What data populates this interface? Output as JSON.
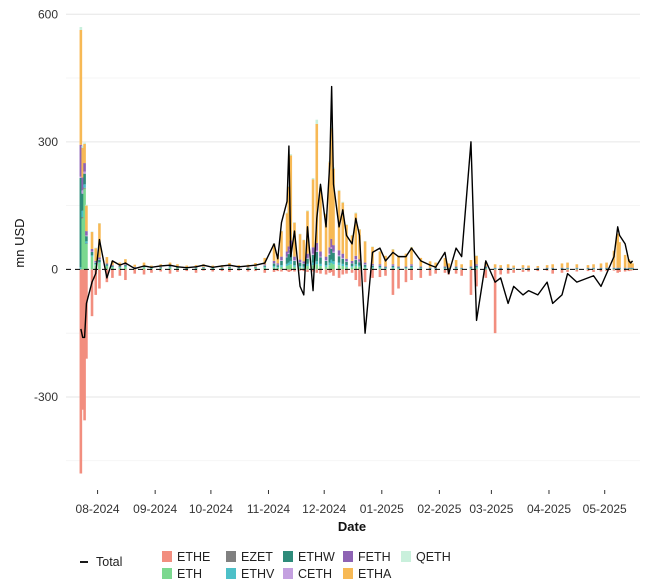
{
  "chart_data": {
    "type": "bar",
    "stacked": true,
    "overlay_line": "Total",
    "xlabel": "Date",
    "ylabel": "mn USD",
    "ylim": [
      -500,
      610
    ],
    "y_ticks": [
      600,
      300,
      0,
      -300
    ],
    "y_tick_labels": [
      "600",
      "300",
      "0",
      "-300"
    ],
    "x_range": [
      "2024-07-15",
      "2025-05-20"
    ],
    "x_ticks": [
      "2024-08-01",
      "2024-09-01",
      "2024-10-01",
      "2024-11-01",
      "2024-12-01",
      "2025-01-01",
      "2025-02-01",
      "2025-03-01",
      "2025-04-01",
      "2025-05-01"
    ],
    "x_tick_labels": [
      "08-2024",
      "09-2024",
      "10-2024",
      "11-2024",
      "12-2024",
      "01-2025",
      "02-2025",
      "03-2025",
      "04-2025",
      "05-2025"
    ],
    "grid": "horizontal",
    "zero_line": "dashed",
    "legend_position": "bottom",
    "legend": {
      "line_label": "Total",
      "items": [
        {
          "name": "ETHE",
          "color": "#F28E7F"
        },
        {
          "name": "ETH",
          "color": "#7BD88F"
        },
        {
          "name": "EZET",
          "color": "#808080"
        },
        {
          "name": "ETHV",
          "color": "#4DC0C8"
        },
        {
          "name": "ETHW",
          "color": "#2E8B7A"
        },
        {
          "name": "CETH",
          "color": "#C4A0E0"
        },
        {
          "name": "FETH",
          "color": "#8E63B4"
        },
        {
          "name": "ETHA",
          "color": "#F7B955"
        },
        {
          "name": "QETH",
          "color": "#C9F0DC"
        }
      ]
    },
    "series": [
      {
        "name": "ETHE",
        "values": [
          -480,
          -330,
          -355,
          -210,
          -110,
          -60,
          -45,
          -30,
          -20,
          -15,
          -25,
          -10,
          -12,
          -8,
          -5,
          -10,
          -6,
          -4,
          -8,
          -3,
          -5,
          -4,
          -6,
          -3,
          -5,
          -4,
          -8,
          -6,
          -4,
          -5,
          -3,
          -6,
          -4,
          -5,
          -3,
          -4,
          -6,
          -5,
          -8,
          -10,
          -12,
          -8,
          -6,
          -15,
          -20,
          -12,
          -10,
          -8,
          -25,
          -40,
          -30,
          -20,
          -18,
          -15,
          -60,
          -45,
          -30,
          -25,
          -20,
          -15,
          -10,
          -8,
          -12,
          -10,
          -15,
          -60,
          -40,
          -20,
          -150,
          -12,
          -10,
          -8,
          -6,
          -5,
          -4,
          -3,
          -10,
          -8,
          -6,
          -5,
          -4,
          -6,
          -5,
          -4,
          -3,
          -8,
          -6,
          -5,
          -4,
          -3,
          -2
        ]
      },
      {
        "name": "ETH",
        "values": [
          0,
          120,
          190,
          60,
          30,
          10,
          15,
          8,
          5,
          4,
          6,
          3,
          4,
          2,
          3,
          4,
          3,
          2,
          2,
          3,
          2,
          2,
          3,
          2,
          2,
          3,
          4,
          5,
          4,
          6,
          8,
          10,
          12,
          6,
          5,
          4,
          8,
          10,
          12,
          8,
          6,
          10,
          15,
          12,
          10,
          8,
          6,
          5,
          8,
          6,
          4,
          3,
          3,
          2,
          3,
          2,
          2,
          3,
          2,
          1,
          1,
          2,
          1,
          2,
          1,
          2,
          3,
          2,
          1,
          1,
          1,
          1,
          1,
          1,
          1,
          1,
          1,
          1,
          1,
          1,
          1,
          1,
          1,
          1,
          1,
          1,
          1,
          1,
          1,
          1,
          1
        ]
      },
      {
        "name": "EZET",
        "values": [
          0,
          3,
          2,
          1,
          0,
          0,
          0,
          0,
          0,
          0,
          0,
          0,
          0,
          0,
          0,
          0,
          0,
          0,
          0,
          0,
          0,
          0,
          0,
          0,
          0,
          0,
          0,
          0,
          0,
          0,
          0,
          0,
          0,
          0,
          0,
          0,
          0,
          0,
          0,
          0,
          0,
          0,
          0,
          0,
          0,
          0,
          0,
          0,
          0,
          0,
          0,
          0,
          0,
          0,
          0,
          0,
          0,
          0,
          0,
          0,
          0,
          0,
          0,
          0,
          0,
          0,
          0,
          0,
          0,
          0,
          0,
          0,
          0,
          0,
          0,
          0,
          0,
          0,
          0,
          0,
          0,
          0,
          0,
          0,
          0,
          0,
          0,
          0,
          0,
          0,
          0
        ]
      },
      {
        "name": "ETHV",
        "values": [
          5,
          15,
          8,
          5,
          3,
          2,
          2,
          1,
          1,
          1,
          1,
          1,
          1,
          1,
          1,
          1,
          1,
          1,
          1,
          1,
          1,
          1,
          1,
          1,
          1,
          1,
          2,
          3,
          2,
          4,
          5,
          6,
          8,
          4,
          3,
          3,
          5,
          6,
          7,
          5,
          4,
          6,
          8,
          7,
          6,
          5,
          4,
          3,
          4,
          3,
          2,
          2,
          2,
          1,
          2,
          1,
          1,
          2,
          1,
          1,
          1,
          1,
          1,
          1,
          1,
          1,
          2,
          1,
          1,
          1,
          1,
          1,
          1,
          1,
          1,
          1,
          1,
          1,
          1,
          1,
          1,
          1,
          1,
          1,
          1,
          1,
          1,
          1,
          1,
          1,
          1
        ]
      },
      {
        "name": "ETHW",
        "values": [
          210,
          40,
          25,
          12,
          8,
          4,
          6,
          3,
          2,
          2,
          3,
          1,
          2,
          1,
          1,
          2,
          1,
          1,
          1,
          1,
          1,
          1,
          2,
          1,
          1,
          2,
          3,
          6,
          4,
          10,
          15,
          20,
          25,
          10,
          8,
          6,
          12,
          18,
          22,
          15,
          10,
          18,
          25,
          20,
          15,
          12,
          8,
          6,
          10,
          8,
          5,
          4,
          3,
          2,
          3,
          2,
          2,
          3,
          2,
          1,
          1,
          2,
          1,
          2,
          1,
          2,
          3,
          2,
          1,
          1,
          1,
          1,
          1,
          1,
          1,
          1,
          1,
          1,
          1,
          1,
          1,
          1,
          1,
          1,
          1,
          1,
          1,
          1,
          1,
          1,
          1
        ]
      },
      {
        "name": "CETH",
        "values": [
          3,
          8,
          5,
          2,
          1,
          1,
          1,
          0,
          0,
          0,
          0,
          0,
          0,
          0,
          0,
          0,
          0,
          0,
          0,
          0,
          0,
          0,
          0,
          0,
          0,
          0,
          1,
          1,
          1,
          2,
          2,
          3,
          3,
          2,
          1,
          1,
          2,
          3,
          3,
          2,
          2,
          3,
          4,
          3,
          2,
          2,
          1,
          1,
          2,
          1,
          1,
          1,
          1,
          0,
          1,
          0,
          0,
          1,
          0,
          0,
          0,
          0,
          0,
          0,
          0,
          0,
          1,
          0,
          0,
          0,
          0,
          0,
          0,
          0,
          0,
          0,
          0,
          0,
          0,
          0,
          0,
          0,
          0,
          0,
          0,
          0,
          0,
          0,
          0,
          0,
          0
        ]
      },
      {
        "name": "FETH",
        "values": [
          75,
          30,
          20,
          10,
          6,
          3,
          4,
          2,
          2,
          1,
          2,
          1,
          1,
          1,
          1,
          1,
          1,
          1,
          1,
          1,
          1,
          1,
          1,
          1,
          1,
          1,
          2,
          5,
          3,
          8,
          12,
          15,
          20,
          8,
          6,
          5,
          10,
          15,
          18,
          12,
          8,
          15,
          20,
          15,
          12,
          10,
          6,
          5,
          8,
          6,
          4,
          3,
          3,
          2,
          3,
          2,
          2,
          3,
          2,
          1,
          1,
          2,
          1,
          2,
          1,
          2,
          3,
          2,
          1,
          1,
          1,
          1,
          1,
          1,
          1,
          1,
          1,
          1,
          1,
          1,
          1,
          1,
          1,
          1,
          1,
          1,
          1,
          1,
          1,
          1,
          1
        ]
      },
      {
        "name": "ETHA",
        "values": [
          270,
          70,
          45,
          60,
          40,
          30,
          80,
          15,
          10,
          8,
          12,
          5,
          8,
          4,
          6,
          8,
          6,
          4,
          5,
          6,
          4,
          5,
          8,
          5,
          6,
          8,
          15,
          40,
          20,
          60,
          90,
          140,
          200,
          80,
          60,
          50,
          100,
          160,
          280,
          150,
          100,
          200,
          260,
          180,
          140,
          120,
          80,
          60,
          100,
          70,
          50,
          40,
          30,
          25,
          35,
          25,
          30,
          40,
          20,
          15,
          12,
          20,
          10,
          15,
          8,
          15,
          20,
          10,
          8,
          6,
          8,
          5,
          6,
          5,
          4,
          6,
          8,
          10,
          12,
          8,
          6,
          8,
          10,
          12,
          40,
          80,
          60,
          30,
          20,
          15,
          10
        ]
      },
      {
        "name": "QETH",
        "values": [
          7,
          5,
          3,
          2,
          1,
          1,
          1,
          0,
          0,
          0,
          0,
          0,
          0,
          0,
          0,
          0,
          0,
          0,
          0,
          0,
          0,
          0,
          0,
          0,
          0,
          0,
          0,
          1,
          0,
          1,
          2,
          2,
          3,
          1,
          1,
          1,
          2,
          3,
          10,
          3,
          2,
          3,
          4,
          3,
          2,
          2,
          1,
          1,
          2,
          1,
          1,
          1,
          1,
          0,
          1,
          0,
          0,
          1,
          0,
          0,
          0,
          0,
          0,
          0,
          0,
          0,
          1,
          0,
          0,
          0,
          0,
          0,
          0,
          0,
          0,
          0,
          0,
          0,
          0,
          0,
          0,
          0,
          0,
          0,
          0,
          0,
          0,
          0,
          0,
          0,
          0
        ]
      }
    ],
    "x": [
      "2024-07-23",
      "2024-07-24",
      "2024-07-25",
      "2024-07-26",
      "2024-07-29",
      "2024-07-31",
      "2024-08-02",
      "2024-08-06",
      "2024-08-09",
      "2024-08-13",
      "2024-08-16",
      "2024-08-21",
      "2024-08-26",
      "2024-08-30",
      "2024-09-04",
      "2024-09-09",
      "2024-09-13",
      "2024-09-18",
      "2024-09-23",
      "2024-09-27",
      "2024-10-02",
      "2024-10-07",
      "2024-10-11",
      "2024-10-16",
      "2024-10-21",
      "2024-10-25",
      "2024-10-30",
      "2024-11-04",
      "2024-11-06",
      "2024-11-08",
      "2024-11-11",
      "2024-11-12",
      "2024-11-13",
      "2024-11-15",
      "2024-11-18",
      "2024-11-20",
      "2024-11-22",
      "2024-11-25",
      "2024-11-27",
      "2024-11-29",
      "2024-12-02",
      "2024-12-04",
      "2024-12-05",
      "2024-12-06",
      "2024-12-09",
      "2024-12-11",
      "2024-12-13",
      "2024-12-16",
      "2024-12-18",
      "2024-12-20",
      "2024-12-23",
      "2024-12-27",
      "2024-12-31",
      "2025-01-03",
      "2025-01-07",
      "2025-01-10",
      "2025-01-14",
      "2025-01-17",
      "2025-01-22",
      "2025-01-27",
      "2025-01-30",
      "2025-02-04",
      "2025-02-06",
      "2025-02-10",
      "2025-02-13",
      "2025-02-18",
      "2025-02-21",
      "2025-02-26",
      "2025-03-03",
      "2025-03-06",
      "2025-03-10",
      "2025-03-13",
      "2025-03-18",
      "2025-03-21",
      "2025-03-26",
      "2025-03-31",
      "2025-04-03",
      "2025-04-08",
      "2025-04-11",
      "2025-04-16",
      "2025-04-22",
      "2025-04-25",
      "2025-04-29",
      "2025-05-02",
      "2025-05-06",
      "2025-05-08",
      "2025-05-09",
      "2025-05-12",
      "2025-05-14",
      "2025-05-15",
      "2025-05-16"
    ],
    "total": [
      -140,
      -160,
      -160,
      -80,
      -30,
      -10,
      70,
      -20,
      20,
      10,
      15,
      2,
      8,
      5,
      8,
      10,
      6,
      4,
      6,
      10,
      5,
      8,
      10,
      6,
      8,
      10,
      15,
      60,
      25,
      110,
      160,
      290,
      30,
      90,
      -40,
      -60,
      100,
      -50,
      120,
      200,
      100,
      250,
      430,
      200,
      100,
      140,
      80,
      60,
      120,
      80,
      -150,
      40,
      50,
      20,
      40,
      30,
      30,
      50,
      20,
      10,
      5,
      40,
      -10,
      50,
      30,
      300,
      -120,
      20,
      -30,
      -20,
      -80,
      -40,
      -60,
      -50,
      -60,
      -30,
      -80,
      -60,
      -10,
      -30,
      -20,
      -15,
      -40,
      -10,
      30,
      100,
      80,
      60,
      20,
      15,
      20
    ]
  }
}
